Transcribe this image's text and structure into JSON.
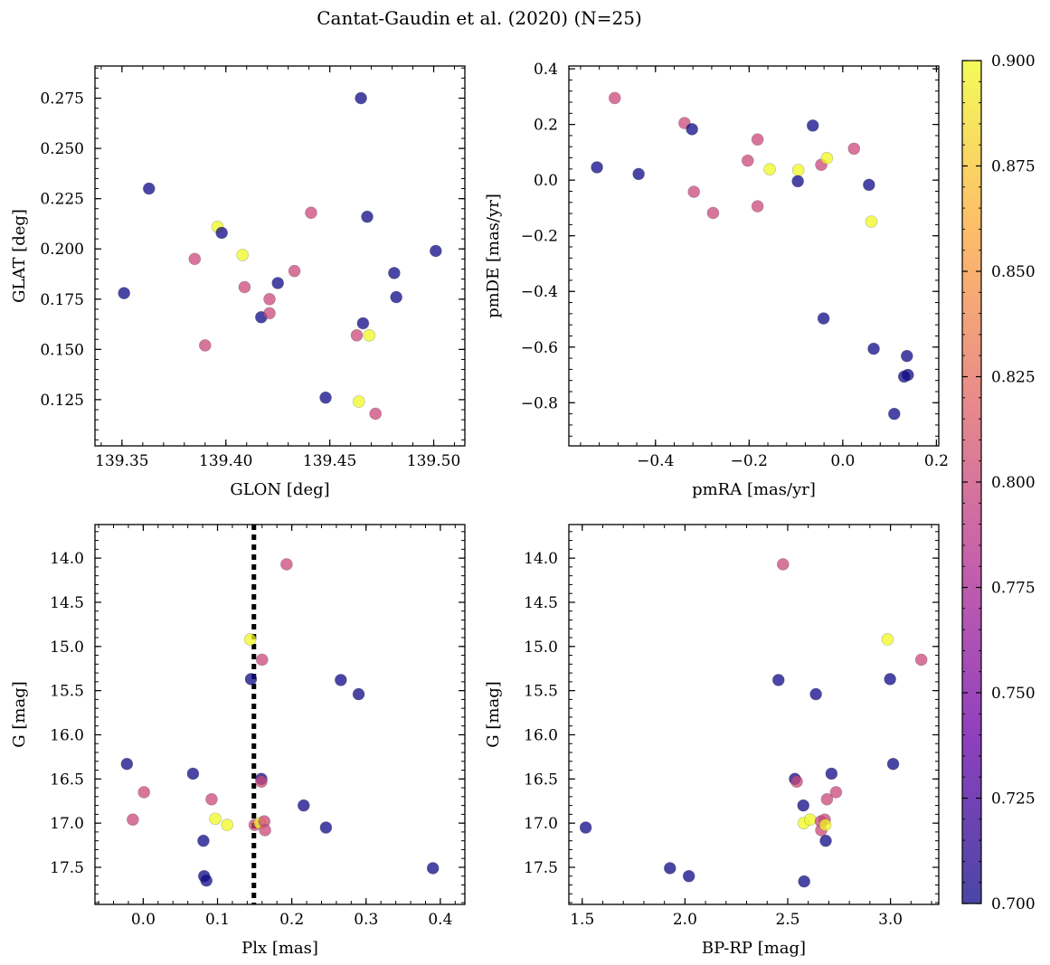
{
  "title": "Cantat-Gaudin et al. (2020) (N=25)",
  "colormap": {
    "name": "plasma",
    "stops": [
      "#0d0887",
      "#6a00a8",
      "#b12a90",
      "#e16462",
      "#fca636",
      "#f0f921"
    ],
    "alpha": 0.75,
    "vmin": 0.7,
    "vmax": 0.9,
    "ticks": [
      "0.700",
      "0.725",
      "0.750",
      "0.775",
      "0.800",
      "0.825",
      "0.850",
      "0.875",
      "0.900"
    ]
  },
  "chart_data": [
    {
      "id": "glon-glat",
      "type": "scatter",
      "xlabel": "GLON [deg]",
      "ylabel": "GLAT [deg]",
      "xlim": [
        139.337,
        139.515
      ],
      "ylim": [
        0.102,
        0.291
      ],
      "xticks": [
        "139.35",
        "139.40",
        "139.45",
        "139.50"
      ],
      "yticks": [
        "0.125",
        "0.150",
        "0.175",
        "0.200",
        "0.225",
        "0.250",
        "0.275"
      ],
      "invert_y": false,
      "points": [
        {
          "x": 139.351,
          "y": 0.178,
          "c": 0.7
        },
        {
          "x": 139.363,
          "y": 0.23,
          "c": 0.7
        },
        {
          "x": 139.385,
          "y": 0.195,
          "c": 0.8
        },
        {
          "x": 139.39,
          "y": 0.152,
          "c": 0.8
        },
        {
          "x": 139.396,
          "y": 0.211,
          "c": 0.9
        },
        {
          "x": 139.398,
          "y": 0.208,
          "c": 0.7
        },
        {
          "x": 139.408,
          "y": 0.197,
          "c": 0.9
        },
        {
          "x": 139.409,
          "y": 0.181,
          "c": 0.8
        },
        {
          "x": 139.417,
          "y": 0.166,
          "c": 0.7
        },
        {
          "x": 139.421,
          "y": 0.175,
          "c": 0.8
        },
        {
          "x": 139.421,
          "y": 0.168,
          "c": 0.8
        },
        {
          "x": 139.425,
          "y": 0.183,
          "c": 0.7
        },
        {
          "x": 139.433,
          "y": 0.189,
          "c": 0.8
        },
        {
          "x": 139.441,
          "y": 0.218,
          "c": 0.8
        },
        {
          "x": 139.448,
          "y": 0.126,
          "c": 0.7
        },
        {
          "x": 139.463,
          "y": 0.157,
          "c": 0.8
        },
        {
          "x": 139.464,
          "y": 0.124,
          "c": 0.9
        },
        {
          "x": 139.465,
          "y": 0.275,
          "c": 0.7
        },
        {
          "x": 139.466,
          "y": 0.163,
          "c": 0.7
        },
        {
          "x": 139.468,
          "y": 0.216,
          "c": 0.7
        },
        {
          "x": 139.469,
          "y": 0.157,
          "c": 0.9
        },
        {
          "x": 139.472,
          "y": 0.118,
          "c": 0.8
        },
        {
          "x": 139.481,
          "y": 0.188,
          "c": 0.7
        },
        {
          "x": 139.482,
          "y": 0.176,
          "c": 0.7
        },
        {
          "x": 139.501,
          "y": 0.199,
          "c": 0.7
        }
      ]
    },
    {
      "id": "pmra-pmde",
      "type": "scatter",
      "xlabel": "pmRA [mas/yr]",
      "ylabel": "pmDE [mas/yr]",
      "xlim": [
        -0.585,
        0.205
      ],
      "ylim": [
        -0.955,
        0.41
      ],
      "xticks": [
        "−0.4",
        "−0.2",
        "0.0",
        "0.2"
      ],
      "yticks": [
        "−0.8",
        "−0.6",
        "−0.4",
        "−0.2",
        "0.0",
        "0.2",
        "0.4"
      ],
      "invert_y": false,
      "points": [
        {
          "x": -0.525,
          "y": 0.046,
          "c": 0.7
        },
        {
          "x": -0.487,
          "y": 0.295,
          "c": 0.8
        },
        {
          "x": -0.436,
          "y": 0.022,
          "c": 0.7
        },
        {
          "x": -0.338,
          "y": 0.205,
          "c": 0.8
        },
        {
          "x": -0.322,
          "y": 0.183,
          "c": 0.7
        },
        {
          "x": -0.318,
          "y": -0.042,
          "c": 0.8
        },
        {
          "x": -0.277,
          "y": -0.118,
          "c": 0.8
        },
        {
          "x": -0.203,
          "y": 0.07,
          "c": 0.8
        },
        {
          "x": -0.182,
          "y": 0.146,
          "c": 0.8
        },
        {
          "x": -0.182,
          "y": -0.094,
          "c": 0.8
        },
        {
          "x": -0.156,
          "y": 0.039,
          "c": 0.9
        },
        {
          "x": -0.095,
          "y": 0.036,
          "c": 0.9
        },
        {
          "x": -0.096,
          "y": -0.004,
          "c": 0.7
        },
        {
          "x": -0.064,
          "y": 0.196,
          "c": 0.7
        },
        {
          "x": -0.046,
          "y": 0.055,
          "c": 0.8
        },
        {
          "x": -0.041,
          "y": -0.497,
          "c": 0.7
        },
        {
          "x": -0.034,
          "y": 0.079,
          "c": 0.9
        },
        {
          "x": 0.024,
          "y": 0.113,
          "c": 0.8
        },
        {
          "x": 0.056,
          "y": -0.017,
          "c": 0.7
        },
        {
          "x": 0.061,
          "y": -0.149,
          "c": 0.9
        },
        {
          "x": 0.066,
          "y": -0.606,
          "c": 0.7
        },
        {
          "x": 0.11,
          "y": -0.84,
          "c": 0.7
        },
        {
          "x": 0.131,
          "y": -0.706,
          "c": 0.7
        },
        {
          "x": 0.137,
          "y": -0.632,
          "c": 0.7
        },
        {
          "x": 0.139,
          "y": -0.7,
          "c": 0.7
        }
      ]
    },
    {
      "id": "plx-g",
      "type": "scatter",
      "xlabel": "Plx [mas]",
      "ylabel": "G [mag]",
      "xlim": [
        -0.065,
        0.433
      ],
      "ylim": [
        17.92,
        13.62
      ],
      "xticks": [
        "0.0",
        "0.1",
        "0.2",
        "0.3",
        "0.4"
      ],
      "yticks": [
        "14.0",
        "14.5",
        "15.0",
        "15.5",
        "16.0",
        "16.5",
        "17.0",
        "17.5"
      ],
      "invert_y": true,
      "vline": {
        "x": 0.149,
        "style": "dotted"
      },
      "points": [
        {
          "x": -0.022,
          "y": 16.33,
          "c": 0.7
        },
        {
          "x": -0.014,
          "y": 16.96,
          "c": 0.8
        },
        {
          "x": 0.001,
          "y": 16.65,
          "c": 0.8
        },
        {
          "x": 0.067,
          "y": 16.44,
          "c": 0.7
        },
        {
          "x": 0.081,
          "y": 17.2,
          "c": 0.7
        },
        {
          "x": 0.082,
          "y": 17.6,
          "c": 0.7
        },
        {
          "x": 0.085,
          "y": 17.65,
          "c": 0.7
        },
        {
          "x": 0.092,
          "y": 16.73,
          "c": 0.8
        },
        {
          "x": 0.097,
          "y": 16.95,
          "c": 0.9
        },
        {
          "x": 0.113,
          "y": 17.02,
          "c": 0.9
        },
        {
          "x": 0.144,
          "y": 14.92,
          "c": 0.9
        },
        {
          "x": 0.145,
          "y": 15.37,
          "c": 0.7
        },
        {
          "x": 0.15,
          "y": 17.02,
          "c": 0.8
        },
        {
          "x": 0.157,
          "y": 17.0,
          "c": 0.9
        },
        {
          "x": 0.159,
          "y": 16.5,
          "c": 0.7
        },
        {
          "x": 0.159,
          "y": 16.53,
          "c": 0.8
        },
        {
          "x": 0.16,
          "y": 15.15,
          "c": 0.8
        },
        {
          "x": 0.163,
          "y": 16.98,
          "c": 0.8
        },
        {
          "x": 0.164,
          "y": 17.08,
          "c": 0.8
        },
        {
          "x": 0.193,
          "y": 14.07,
          "c": 0.8
        },
        {
          "x": 0.216,
          "y": 16.8,
          "c": 0.7
        },
        {
          "x": 0.246,
          "y": 17.05,
          "c": 0.7
        },
        {
          "x": 0.266,
          "y": 15.38,
          "c": 0.7
        },
        {
          "x": 0.29,
          "y": 15.54,
          "c": 0.7
        },
        {
          "x": 0.39,
          "y": 17.51,
          "c": 0.7
        }
      ]
    },
    {
      "id": "bprp-g",
      "type": "scatter",
      "xlabel": "BP-RP [mag]",
      "ylabel": "G [mag]",
      "xlim": [
        1.435,
        3.235
      ],
      "ylim": [
        17.92,
        13.62
      ],
      "xticks": [
        "1.5",
        "2.0",
        "2.5",
        "3.0"
      ],
      "yticks": [
        "14.0",
        "14.5",
        "15.0",
        "15.5",
        "16.0",
        "16.5",
        "17.0",
        "17.5"
      ],
      "invert_y": true,
      "points": [
        {
          "x": 1.517,
          "y": 17.05,
          "c": 0.7
        },
        {
          "x": 1.927,
          "y": 17.51,
          "c": 0.7
        },
        {
          "x": 2.019,
          "y": 17.6,
          "c": 0.7
        },
        {
          "x": 2.455,
          "y": 15.38,
          "c": 0.7
        },
        {
          "x": 2.477,
          "y": 14.07,
          "c": 0.8
        },
        {
          "x": 2.535,
          "y": 16.5,
          "c": 0.7
        },
        {
          "x": 2.544,
          "y": 16.53,
          "c": 0.8
        },
        {
          "x": 2.576,
          "y": 16.8,
          "c": 0.7
        },
        {
          "x": 2.578,
          "y": 17.0,
          "c": 0.9
        },
        {
          "x": 2.58,
          "y": 17.66,
          "c": 0.7
        },
        {
          "x": 2.609,
          "y": 16.96,
          "c": 0.9
        },
        {
          "x": 2.637,
          "y": 15.54,
          "c": 0.7
        },
        {
          "x": 2.661,
          "y": 16.98,
          "c": 0.8
        },
        {
          "x": 2.663,
          "y": 17.08,
          "c": 0.8
        },
        {
          "x": 2.68,
          "y": 16.96,
          "c": 0.8
        },
        {
          "x": 2.683,
          "y": 17.02,
          "c": 0.9
        },
        {
          "x": 2.685,
          "y": 17.2,
          "c": 0.7
        },
        {
          "x": 2.691,
          "y": 16.73,
          "c": 0.8
        },
        {
          "x": 2.713,
          "y": 16.44,
          "c": 0.7
        },
        {
          "x": 2.735,
          "y": 16.65,
          "c": 0.8
        },
        {
          "x": 2.986,
          "y": 14.92,
          "c": 0.9
        },
        {
          "x": 2.998,
          "y": 15.37,
          "c": 0.7
        },
        {
          "x": 3.013,
          "y": 16.33,
          "c": 0.7
        },
        {
          "x": 3.15,
          "y": 15.15,
          "c": 0.8
        }
      ]
    }
  ]
}
